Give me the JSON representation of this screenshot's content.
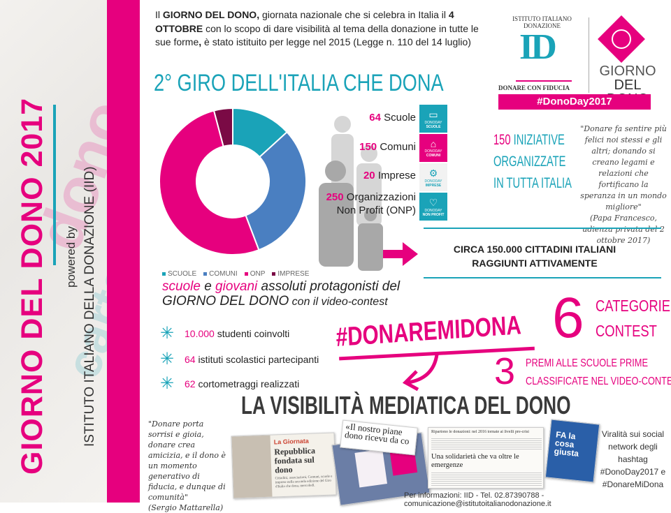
{
  "sidebar": {
    "title": "GIORNO DEL DONO 2017",
    "powered_by": "powered by",
    "institute": "ISTITUTO ITALIANO DELLA DONAZIONE (IID)"
  },
  "intro": {
    "p1": "Il ",
    "b1": "GIORNO DEL DONO,",
    "p2": " giornata nazionale che si celebra in Italia il ",
    "b2": "4 OTTOBRE",
    "p3": " con lo scopo di dare visibilità al tema della donazione in tutte le sue forme",
    "b3": ",",
    "p4": " è stato istituito per legge nel 2015 (Legge n. 110 del 14 luglio)"
  },
  "logo": {
    "arc_text": "ISTITUTO ITALIANO DONAZIONE",
    "letters": "ID",
    "tagline": "DONARE CON FIDUCIA",
    "giorno": "GIORNO",
    "del_dono": "DEL DONO",
    "hashtag": "#DonoDay2017"
  },
  "giro_title": "2° GIRO DELL'ITALIA CHE DONA",
  "chart_data": {
    "type": "pie",
    "donut": true,
    "categories": [
      "SCUOLE",
      "COMUNI",
      "ONP",
      "IMPRESE"
    ],
    "values": [
      64,
      150,
      250,
      20
    ],
    "colors": [
      "#1aa3b8",
      "#4a7fc1",
      "#e6007e",
      "#7a0a45"
    ],
    "legend": "bottom"
  },
  "stats": [
    {
      "num": "64",
      "label": "Scuole",
      "tile": "SCUOLE",
      "icon": "book-icon",
      "color": "#1aa3b8"
    },
    {
      "num": "150",
      "label": "Comuni",
      "tile": "COMUNI",
      "icon": "building-icon",
      "color": "#e6007e"
    },
    {
      "num": "20",
      "label": "Imprese",
      "tile": "IMPRESE",
      "icon": "gears-icon",
      "color": "#f2f2f2"
    },
    {
      "num": "250",
      "label": "Organizzazioni Non Profit (ONP)",
      "tile": "NON PROFIT",
      "icon": "heart-icon",
      "color": "#1aa3b8"
    }
  ],
  "tile_brand": "DONODAY",
  "iniziative": {
    "num": "150",
    "l1": "INIZIATIVE",
    "l2": "ORGANIZZATE",
    "l3": "IN TUTTA ITALIA"
  },
  "papa_quote": {
    "text": "\"Donare fa sentire più felici noi stessi e gli altri; donando si creano legami e relazioni che fortificano la speranza in un mondo migliore\"",
    "source": "(Papa Francesco, udienza privata del 2 ottobre 2017)"
  },
  "circa": {
    "l1": "CIRCA 150.000 CITTADINI ITALIANI",
    "l2": "RAGGIUNTI ATTIVAMENTE"
  },
  "protag": {
    "w1": "scuole",
    "w2": " e ",
    "w3": "giovani",
    "w4": " assoluti protagonisti del",
    "l2a": "GIORNO DEL DONO",
    "l2b": " con il video-contest"
  },
  "bullets": [
    {
      "num": "10.000",
      "text": " studenti coinvolti"
    },
    {
      "num": "64",
      "text": " istituti scolastici partecipanti"
    },
    {
      "num": "62",
      "text": " cortometraggi realizzati"
    }
  ],
  "contest": {
    "hashtag": "#DONAREMIDONA",
    "six": "6",
    "cat1": "CATEGORIE",
    "cat2": "CONTEST",
    "three": "3",
    "premi1": "PREMI ALLE SCUOLE PRIME",
    "premi2": "CLASSIFICATE NEL VIDEO-CONTEST"
  },
  "media": {
    "title": "LA VISIBILITÀ MEDIATICA DEL DONO",
    "mattarella_quote": "\"Donare porta sorrisi e gioia, donare crea amicizia, e il dono è un momento generativo di fiducia, e dunque di comunità\"",
    "mattarella_source": "(Sergio Mattarella)",
    "clip1_kicker": "La Giornata",
    "clip1_head": "Repubblica fondata sul dono",
    "clip1_body": "Cittadini, associazioni, Comuni, scuole e imprese nella seconda edizione del Giro d'Italia che dona, mercoledì.",
    "clip2_head": "«Il nostro piane dono ricevu da co",
    "clip3_top": "Ripartono le donazioni: nel 2016 tornate ai livelli pre-crisi",
    "clip3_head": "Una solidarietà che va oltre le emergenze",
    "tv_text": "FA la cosa giusta",
    "viral": "Viralità sui social network degli hashtag #DonoDay2017 e #DonareMiDona"
  },
  "footer": "Per informazioni: IID - Tel. 02.87390788 - comunicazione@istitutoitalianodonazione.it"
}
